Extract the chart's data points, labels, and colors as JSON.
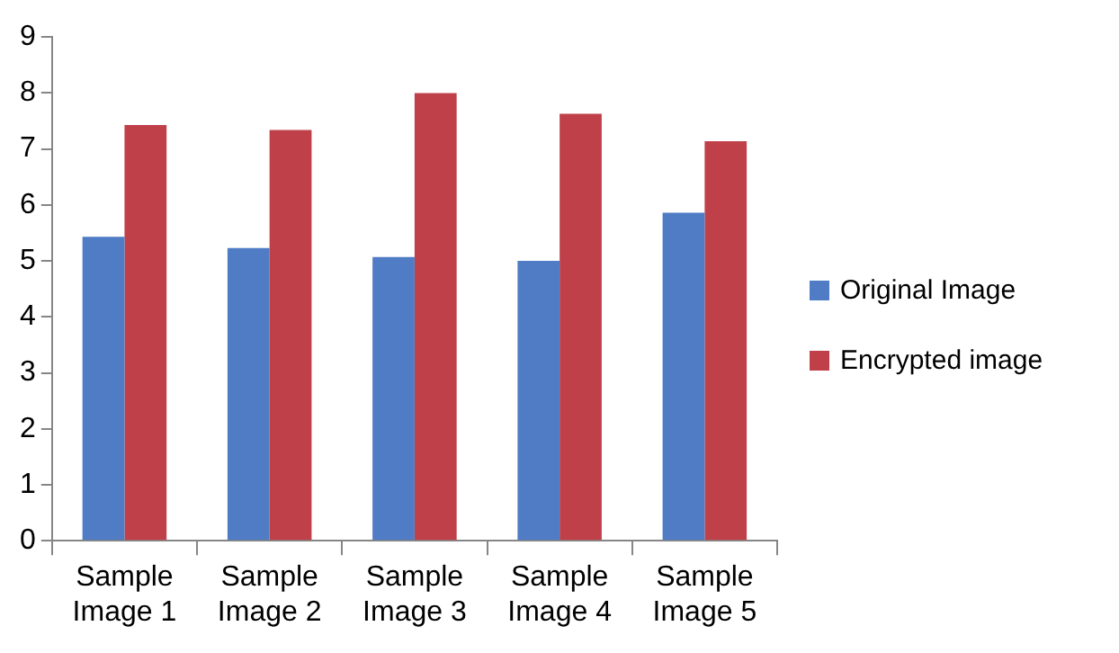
{
  "chart_data": {
    "type": "bar",
    "categories": [
      "Sample Image 1",
      "Sample Image 2",
      "Sample Image 3",
      "Sample Image 4",
      "Sample Image 5"
    ],
    "series": [
      {
        "name": "Original Image",
        "color": "#4f7cc4",
        "values": [
          5.43,
          5.23,
          5.07,
          5.0,
          5.86
        ]
      },
      {
        "name": "Encrypted image",
        "color": "#c0404a",
        "values": [
          7.43,
          7.34,
          8.0,
          7.63,
          7.14
        ]
      }
    ],
    "ylim": [
      0,
      9
    ],
    "yticks": [
      0,
      1,
      2,
      3,
      4,
      5,
      6,
      7,
      8,
      9
    ],
    "grid": false,
    "legend": "right"
  }
}
